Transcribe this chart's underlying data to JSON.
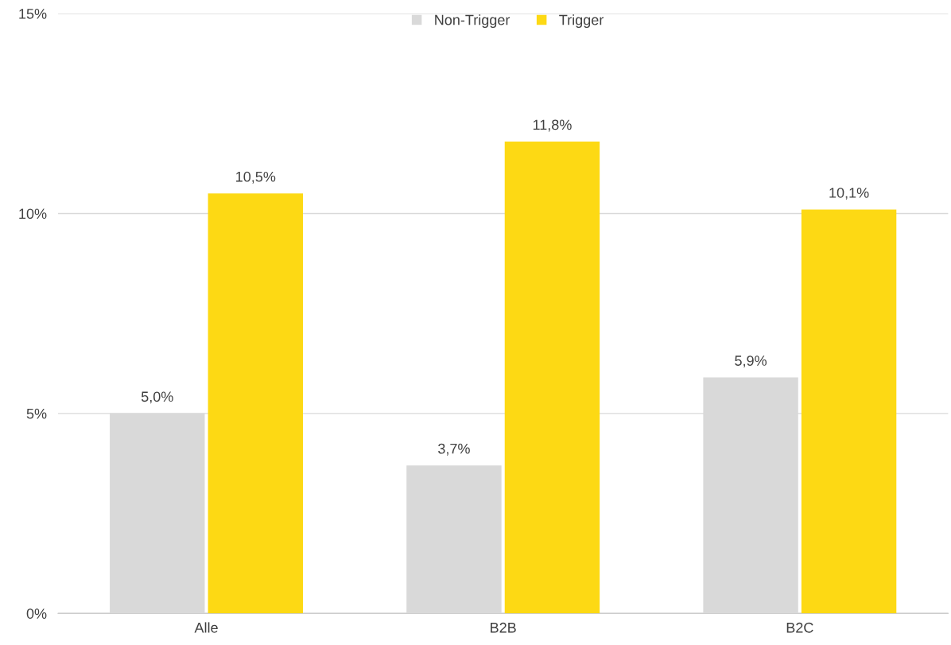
{
  "chart_data": {
    "type": "bar",
    "categories": [
      "Alle",
      "B2B",
      "B2C"
    ],
    "series": [
      {
        "name": "Non-Trigger",
        "color": "#d9d9d9",
        "values": [
          5.0,
          3.7,
          5.9
        ],
        "value_labels": [
          "5,0%",
          "3,7%",
          "5,9%"
        ]
      },
      {
        "name": "Trigger",
        "color": "#fdd914",
        "values": [
          10.5,
          11.8,
          10.1
        ],
        "value_labels": [
          "10,5%",
          "11,8%",
          "10,1%"
        ]
      }
    ],
    "ylim": [
      0,
      15
    ],
    "yticks": [
      {
        "value": 0,
        "label": "0%"
      },
      {
        "value": 5,
        "label": "5%"
      },
      {
        "value": 10,
        "label": "10%"
      },
      {
        "value": 15,
        "label": "15%"
      }
    ],
    "grid": "y",
    "legend": "top"
  }
}
